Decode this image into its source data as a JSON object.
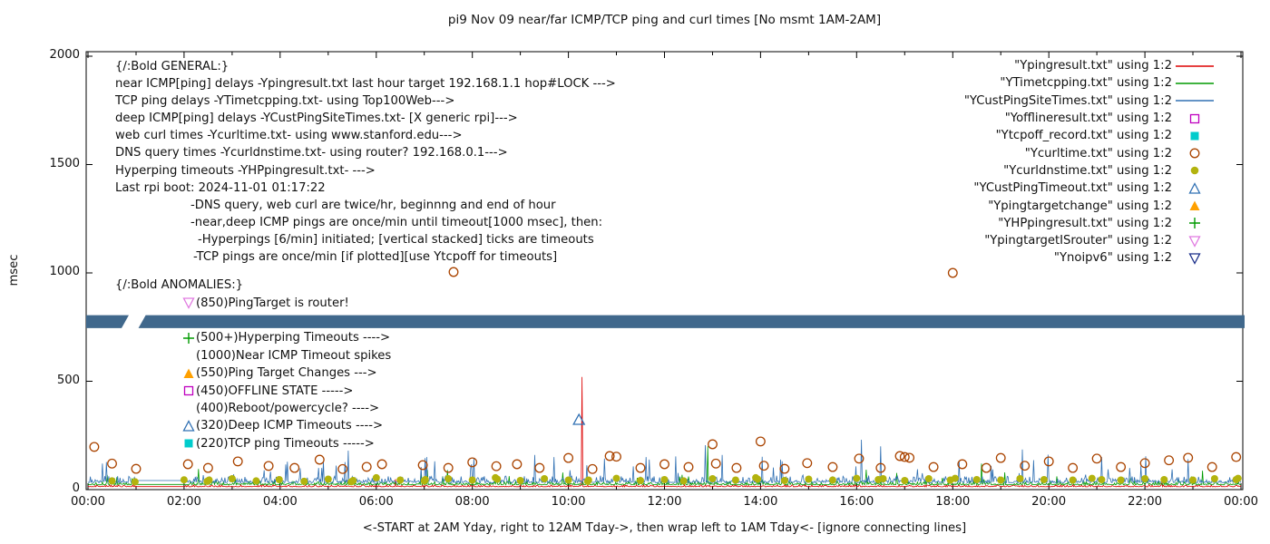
{
  "chart": {
    "title": "pi9 Nov 09  near/far ICMP/TCP ping and curl times [No msmt 1AM-2AM]",
    "xlabel": "<-START at 2AM Yday, right to 12AM Tday->, then wrap left to 1AM Tday<- [ignore connecting lines]",
    "ylabel": "msec"
  },
  "chart_data": {
    "type": "line",
    "title": "pi9 Nov 09  near/far ICMP/TCP ping and curl times [No msmt 1AM-2AM]",
    "xlabel": "<-START at 2AM Yday, right to 12AM Tday->, then wrap left to 1AM Tday<- [ignore connecting lines]",
    "ylabel": "msec",
    "ylim": [
      0,
      2000
    ],
    "x_hours_range": [
      0,
      24
    ],
    "x_ticks": [
      "00:00",
      "02:00",
      "04:00",
      "06:00",
      "08:00",
      "10:00",
      "12:00",
      "14:00",
      "16:00",
      "18:00",
      "20:00",
      "22:00",
      "00:00"
    ],
    "y_ticks": [
      0,
      500,
      1000,
      1500,
      2000
    ],
    "grid": false,
    "legend_position": "top-right",
    "no_measurement_window_hours": [
      1,
      2
    ],
    "line_series": [
      {
        "name": "Ypingresult.txt",
        "color": "#dd0000",
        "seed": 11,
        "baseline": 13,
        "jitter": 9,
        "spike_prob": 0.004,
        "spike_max": 30,
        "flat": 14,
        "extra_spikes": [
          [
            10.28,
            520
          ]
        ]
      },
      {
        "name": "YTimetcpping.txt",
        "color": "#009a00",
        "seed": 22,
        "baseline": 22,
        "jitter": 16,
        "spike_prob": 0.02,
        "spike_max": 70,
        "flat": 24,
        "extra_spikes": [
          [
            2.3,
            95
          ],
          [
            12.9,
            200
          ],
          [
            18.6,
            120
          ]
        ]
      },
      {
        "name": "YCustPingSiteTimes.txt",
        "color": "#3070b3",
        "seed": 33,
        "baseline": 32,
        "jitter": 30,
        "spike_prob": 0.05,
        "spike_max": 120,
        "flat": 42,
        "extra_spikes": [
          [
            0.3,
            120
          ],
          [
            4.9,
            130
          ],
          [
            7.05,
            150
          ],
          [
            9.3,
            160
          ],
          [
            12.85,
            205
          ],
          [
            13.2,
            160
          ],
          [
            16.1,
            230
          ],
          [
            16.5,
            200
          ],
          [
            19.45,
            185
          ],
          [
            21.1,
            150
          ],
          [
            22.9,
            140
          ]
        ]
      }
    ],
    "point_series": [
      {
        "name": "Ycurltime.txt",
        "marker": "circle-open",
        "color": "#aa4400",
        "points": [
          [
            0.13,
            197
          ],
          [
            0.5,
            120
          ],
          [
            1.0,
            96
          ],
          [
            2.08,
            117
          ],
          [
            2.5,
            100
          ],
          [
            3.12,
            130
          ],
          [
            3.76,
            109
          ],
          [
            4.3,
            100
          ],
          [
            4.82,
            138
          ],
          [
            5.3,
            95
          ],
          [
            5.8,
            105
          ],
          [
            6.12,
            117
          ],
          [
            6.97,
            113
          ],
          [
            7.5,
            100
          ],
          [
            7.61,
            1004
          ],
          [
            8.0,
            126
          ],
          [
            8.5,
            108
          ],
          [
            8.93,
            117
          ],
          [
            9.4,
            100
          ],
          [
            10.0,
            146
          ],
          [
            10.5,
            95
          ],
          [
            10.86,
            155
          ],
          [
            11.0,
            152
          ],
          [
            11.5,
            100
          ],
          [
            12.0,
            117
          ],
          [
            12.5,
            104
          ],
          [
            13.0,
            209
          ],
          [
            13.07,
            120
          ],
          [
            13.5,
            100
          ],
          [
            14.0,
            222
          ],
          [
            14.07,
            110
          ],
          [
            14.5,
            96
          ],
          [
            14.97,
            122
          ],
          [
            15.5,
            104
          ],
          [
            16.05,
            143
          ],
          [
            16.5,
            100
          ],
          [
            16.9,
            155
          ],
          [
            17.0,
            150
          ],
          [
            17.1,
            147
          ],
          [
            17.6,
            104
          ],
          [
            18.0,
            1000
          ],
          [
            18.2,
            117
          ],
          [
            18.7,
            100
          ],
          [
            19.0,
            146
          ],
          [
            19.5,
            110
          ],
          [
            20.0,
            130
          ],
          [
            20.5,
            100
          ],
          [
            21.0,
            143
          ],
          [
            21.5,
            104
          ],
          [
            22.0,
            122
          ],
          [
            22.5,
            135
          ],
          [
            22.9,
            147
          ],
          [
            23.4,
            104
          ],
          [
            23.9,
            150
          ]
        ]
      },
      {
        "name": "Ycurldnstime.txt",
        "marker": "circle-filled",
        "color": "#b3b30e",
        "points": [
          [
            0.5,
            40
          ],
          [
            0.98,
            36
          ],
          [
            2.0,
            45
          ],
          [
            2.48,
            38
          ],
          [
            2.52,
            44
          ],
          [
            3.0,
            50
          ],
          [
            3.5,
            40
          ],
          [
            3.98,
            46
          ],
          [
            4.5,
            38
          ],
          [
            5.0,
            48
          ],
          [
            5.48,
            36
          ],
          [
            5.52,
            42
          ],
          [
            6.0,
            55
          ],
          [
            6.5,
            44
          ],
          [
            7.0,
            40
          ],
          [
            7.02,
            46
          ],
          [
            7.5,
            50
          ],
          [
            8.0,
            44
          ],
          [
            8.48,
            55
          ],
          [
            8.52,
            48
          ],
          [
            9.0,
            42
          ],
          [
            9.5,
            50
          ],
          [
            10.0,
            44
          ],
          [
            10.4,
            38
          ],
          [
            10.42,
            44
          ],
          [
            11.0,
            52
          ],
          [
            11.5,
            42
          ],
          [
            12.0,
            46
          ],
          [
            12.4,
            40
          ],
          [
            13.0,
            50
          ],
          [
            13.48,
            44
          ],
          [
            13.9,
            55
          ],
          [
            13.94,
            48
          ],
          [
            14.5,
            42
          ],
          [
            15.0,
            48
          ],
          [
            15.5,
            44
          ],
          [
            16.0,
            52
          ],
          [
            16.45,
            46
          ],
          [
            16.55,
            50
          ],
          [
            17.0,
            42
          ],
          [
            17.5,
            50
          ],
          [
            17.95,
            44
          ],
          [
            18.05,
            52
          ],
          [
            18.5,
            46
          ],
          [
            19.0,
            44
          ],
          [
            19.4,
            50
          ],
          [
            19.9,
            46
          ],
          [
            20.5,
            44
          ],
          [
            20.9,
            52
          ],
          [
            21.1,
            46
          ],
          [
            21.5,
            44
          ],
          [
            22.0,
            50
          ],
          [
            22.4,
            46
          ],
          [
            23.0,
            44
          ],
          [
            23.45,
            50
          ],
          [
            23.9,
            46
          ],
          [
            23.94,
            52
          ]
        ]
      },
      {
        "name": "YCustPingTimeout.txt",
        "marker": "triangle-open",
        "color": "#3070b3",
        "points": [
          [
            10.22,
            320
          ]
        ]
      }
    ],
    "band": {
      "color": "#40688c",
      "from_msec": 745,
      "to_msec": 805,
      "gap_at_hours": [
        0.85,
        1.2
      ],
      "note": "solid horizontal band across full plot width with slanted gap near 01:00"
    }
  },
  "legend": {
    "items": [
      {
        "label": "\"Ypingresult.txt\" using 1:2",
        "marker": "line",
        "color": "#dd0000"
      },
      {
        "label": "\"YTimetcpping.txt\" using 1:2",
        "marker": "line",
        "color": "#009a00"
      },
      {
        "label": "\"YCustPingSiteTimes.txt\" using 1:2",
        "marker": "line",
        "color": "#3070b3"
      },
      {
        "label": "\"Yofflineresult.txt\" using 1:2",
        "marker": "square-open",
        "color": "#bf00bf"
      },
      {
        "label": "\"Ytcpoff_record.txt\" using 1:2",
        "marker": "square-filled",
        "color": "#00cccc"
      },
      {
        "label": "\"Ycurltime.txt\" using 1:2",
        "marker": "circle-open",
        "color": "#aa4400"
      },
      {
        "label": "\"Ycurldnstime.txt\" using 1:2",
        "marker": "circle-filled",
        "color": "#b3b30e"
      },
      {
        "label": "\"YCustPingTimeout.txt\" using 1:2",
        "marker": "triangle-open",
        "color": "#3070b3"
      },
      {
        "label": "\"Ypingtargetchange\" using 1:2",
        "marker": "triangle-filled",
        "color": "#ffa000"
      },
      {
        "label": "\"YHPpingresult.txt\" using 1:2",
        "marker": "plus",
        "color": "#009a00"
      },
      {
        "label": "\"YpingtargetISrouter\" using 1:2",
        "marker": "nabla-open",
        "color": "#e07ae0"
      },
      {
        "label": "\"Ynoipv6\" using 1:2",
        "marker": "nabla-open",
        "color": "#1b2f8a"
      }
    ]
  },
  "annotations": {
    "general": {
      "lines": [
        {
          "text": "{/:Bold GENERAL:}",
          "indent": 0
        },
        {
          "text": "near ICMP[ping] delays -Ypingresult.txt last hour target 192.168.1.1 hop#LOCK --->",
          "indent": 0
        },
        {
          "text": "TCP ping delays -YTimetcpping.txt- using Top100Web--->",
          "indent": 0
        },
        {
          "text": "deep ICMP[ping] delays -YCustPingSiteTimes.txt- [X generic rpi]--->",
          "indent": 0
        },
        {
          "text": "web curl times -Ycurltime.txt- using www.stanford.edu--->",
          "indent": 0
        },
        {
          "text": "DNS query times -Ycurldnstime.txt- using router? 192.168.0.1--->",
          "indent": 0
        },
        {
          "text": "Hyperping timeouts -YHPpingresult.txt- --->",
          "indent": 0
        },
        {
          "text": "Last rpi boot: 2024-11-01 01:17:22",
          "indent": 0
        },
        {
          "text": "-DNS query, web curl are twice/hr, beginnng and end of hour",
          "indent": 83
        },
        {
          "text": "-near,deep ICMP pings are once/min until timeout[1000 msec], then:",
          "indent": 83
        },
        {
          "text": "-Hyperpings [6/min] initiated; [vertical stacked] ticks are timeouts",
          "indent": 91
        },
        {
          "text": "-TCP pings are once/min [if plotted][use Ytcpoff for timeouts]",
          "indent": 86
        }
      ]
    },
    "anomalies": {
      "header": "{/:Bold ANOMALIES:}",
      "rows": [
        {
          "marker": "nabla-open",
          "color": "#e07ae0",
          "text": "(850)PingTarget is router!"
        },
        {
          "spacer": true,
          "text": ""
        },
        {
          "marker": "plus",
          "color": "#009a00",
          "text": "(500+)Hyperping Timeouts ---->"
        },
        {
          "marker": "none",
          "text": "(1000)Near ICMP Timeout spikes"
        },
        {
          "marker": "triangle-filled",
          "color": "#ffa000",
          "text": "(550)Ping Target Changes --->"
        },
        {
          "marker": "square-open",
          "color": "#bf00bf",
          "text": "(450)OFFLINE STATE ----->"
        },
        {
          "marker": "none",
          "text": "(400)Reboot/powercycle? ---->"
        },
        {
          "marker": "triangle-open",
          "color": "#3070b3",
          "text": "(320)Deep ICMP Timeouts ---->"
        },
        {
          "marker": "square-filled",
          "color": "#00cccc",
          "text": "(220)TCP ping Timeouts ----->"
        }
      ]
    }
  }
}
